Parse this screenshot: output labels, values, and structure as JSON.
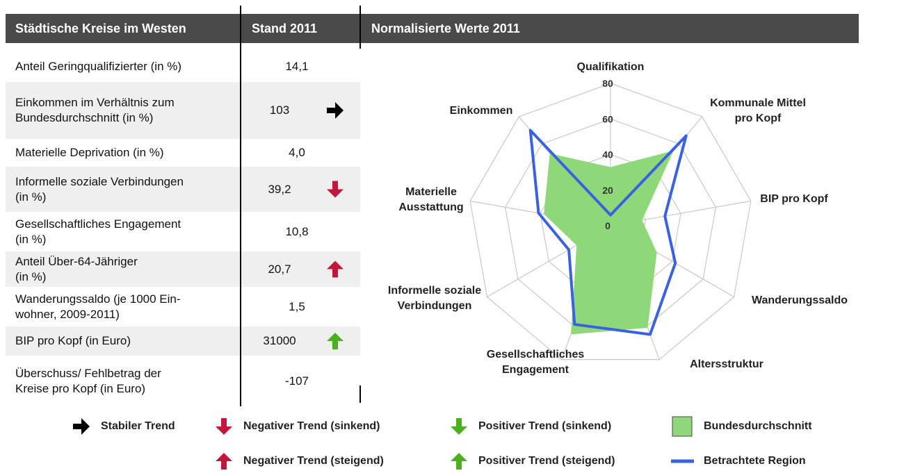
{
  "table": {
    "headers": [
      "Städtische Kreise im Westen",
      "Stand 2011",
      "Normalisierte Werte 2011"
    ],
    "rows": [
      {
        "label": "Anteil Geringqualifizierter (in %)",
        "value": "14,1",
        "trend": null
      },
      {
        "label": "Einkommen im Verhältnis zum\nBundesdurchschnitt (in %)",
        "value": "103",
        "trend": 0
      },
      {
        "label": "Materielle Deprivation (in %)",
        "value": "4,0",
        "trend": null
      },
      {
        "label": "Informelle soziale Verbindungen\n(in %)",
        "value": "39,2",
        "trend": 1
      },
      {
        "label": "Gesellschaftliches Engagement\n(in %)",
        "value": "10,8",
        "trend": null
      },
      {
        "label": "Anteil Über-64-Jähriger\n (in %)",
        "value": "20,7",
        "trend": 2
      },
      {
        "label": "Wanderungssaldo (je 1000 Ein-\nwohner, 2009-2011)",
        "value": "1,5",
        "trend": null
      },
      {
        "label": "BIP pro Kopf (in Euro)",
        "value": "31000",
        "trend": 4
      },
      {
        "label": "Überschuss/ Fehlbetrag der\nKreise pro Kopf  (in Euro)",
        "value": "-107",
        "trend": null
      }
    ]
  },
  "trend_legend": [
    "Stabiler Trend",
    "Negativer Trend (sinkend)",
    "Negativer Trend (steigend)",
    "Positiver Trend (sinkend)",
    "Positiver Trend (steigend)"
  ],
  "chart_data": {
    "type": "radar",
    "categories": [
      "Qualifikation",
      "Kommunale Mittel\npro Kopf",
      "BIP pro Kopf",
      "Wanderungssaldo",
      "Altersstruktur",
      "Gesellschaftliches\nEngagement",
      "Informelle soziale\nVerbindungen",
      "Materielle\nAusstattung",
      "Einkommen"
    ],
    "rlim": [
      0,
      80
    ],
    "rticks": [
      0,
      20,
      40,
      60,
      80
    ],
    "series": [
      {
        "name": "Bundesdurchschnitt",
        "color": "#8fd87a",
        "values": [
          33,
          55,
          18,
          30,
          61,
          65,
          22,
          38,
          53
        ]
      },
      {
        "name": "Betrachtete Region",
        "color": "#3a62e0",
        "values": [
          6,
          66,
          31,
          42,
          65,
          59,
          27,
          41,
          70
        ]
      }
    ]
  }
}
